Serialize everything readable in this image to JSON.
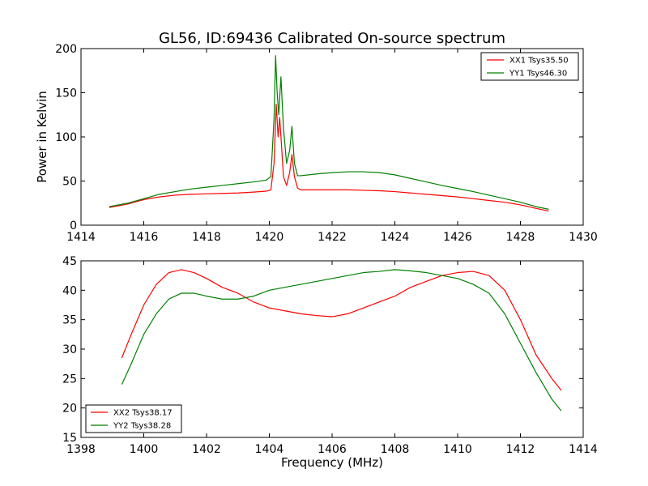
{
  "chart_data": [
    {
      "type": "line",
      "title": "GL56, ID:69436 Calibrated On-source spectrum",
      "xlabel": "",
      "ylabel": "Power in Kelvin",
      "xlim": [
        1414,
        1430
      ],
      "ylim": [
        0,
        200
      ],
      "xticks": [
        1414,
        1416,
        1418,
        1420,
        1422,
        1424,
        1426,
        1428,
        1430
      ],
      "yticks": [
        0,
        50,
        100,
        150,
        200
      ],
      "legend_position": "top-right",
      "series": [
        {
          "name": "XX1 Tsys35.50",
          "color": "#ff0000",
          "x": [
            1414.9,
            1415.5,
            1416.0,
            1416.5,
            1417.0,
            1417.5,
            1418.0,
            1418.5,
            1419.0,
            1419.5,
            1419.9,
            1420.05,
            1420.15,
            1420.22,
            1420.28,
            1420.33,
            1420.38,
            1420.45,
            1420.55,
            1420.65,
            1420.72,
            1420.8,
            1420.9,
            1421.0,
            1421.5,
            1422.0,
            1422.5,
            1423.0,
            1423.5,
            1424.0,
            1424.5,
            1425.0,
            1425.5,
            1426.0,
            1426.5,
            1427.0,
            1427.5,
            1428.0,
            1428.5,
            1428.9
          ],
          "values": [
            20,
            24,
            29,
            32,
            34,
            35,
            35.5,
            36,
            36.5,
            37.5,
            38.5,
            40,
            70,
            137,
            100,
            122,
            95,
            55,
            45,
            60,
            80,
            55,
            42,
            40,
            40,
            40,
            40,
            39.5,
            39,
            38,
            36.5,
            35,
            33.5,
            32,
            30,
            28,
            26,
            23,
            19,
            16
          ]
        },
        {
          "name": "YY1 Tsys46.30",
          "color": "#008000",
          "x": [
            1414.9,
            1415.5,
            1416.0,
            1416.5,
            1417.0,
            1417.5,
            1418.0,
            1418.5,
            1419.0,
            1419.5,
            1419.9,
            1420.05,
            1420.15,
            1420.2,
            1420.25,
            1420.3,
            1420.37,
            1420.45,
            1420.55,
            1420.65,
            1420.72,
            1420.8,
            1420.9,
            1421.0,
            1421.5,
            1422.0,
            1422.5,
            1423.0,
            1423.5,
            1424.0,
            1424.5,
            1425.0,
            1425.5,
            1426.0,
            1426.5,
            1427.0,
            1427.5,
            1428.0,
            1428.5,
            1428.9
          ],
          "values": [
            21,
            25,
            30,
            35,
            38,
            41,
            43,
            45,
            47,
            49,
            51,
            55,
            120,
            192,
            150,
            125,
            168,
            110,
            70,
            85,
            112,
            70,
            56,
            56,
            58,
            59.5,
            60.5,
            60.5,
            59.5,
            57,
            53,
            49,
            45,
            41.5,
            38,
            34,
            30,
            26,
            21,
            18
          ]
        }
      ]
    },
    {
      "type": "line",
      "title": "",
      "xlabel": "Frequency (MHz)",
      "ylabel": "",
      "xlim": [
        1398,
        1414
      ],
      "ylim": [
        15,
        45
      ],
      "xticks": [
        1398,
        1400,
        1402,
        1404,
        1406,
        1408,
        1410,
        1412,
        1414
      ],
      "yticks": [
        15,
        20,
        25,
        30,
        35,
        40,
        45
      ],
      "legend_position": "bottom-left",
      "series": [
        {
          "name": "XX2 Tsys38.17",
          "color": "#ff0000",
          "x": [
            1399.3,
            1399.6,
            1400.0,
            1400.4,
            1400.8,
            1401.2,
            1401.6,
            1402.0,
            1402.5,
            1403.0,
            1403.5,
            1404.0,
            1404.5,
            1405.0,
            1405.5,
            1406.0,
            1406.5,
            1407.0,
            1407.5,
            1408.0,
            1408.5,
            1409.0,
            1409.5,
            1410.0,
            1410.5,
            1411.0,
            1411.5,
            1412.0,
            1412.5,
            1413.0,
            1413.3
          ],
          "values": [
            28.5,
            32.5,
            37.5,
            41,
            43,
            43.5,
            43,
            42,
            40.5,
            39.5,
            38,
            37,
            36.5,
            36,
            35.7,
            35.5,
            36,
            37,
            38,
            39,
            40.5,
            41.5,
            42.5,
            43,
            43.2,
            42.5,
            40,
            35,
            29,
            25,
            23
          ]
        },
        {
          "name": "YY2 Tsys38.28",
          "color": "#008000",
          "x": [
            1399.3,
            1399.6,
            1400.0,
            1400.4,
            1400.8,
            1401.2,
            1401.6,
            1402.0,
            1402.5,
            1403.0,
            1403.5,
            1404.0,
            1404.5,
            1405.0,
            1405.5,
            1406.0,
            1406.5,
            1407.0,
            1407.5,
            1408.0,
            1408.5,
            1409.0,
            1409.5,
            1410.0,
            1410.5,
            1411.0,
            1411.5,
            1412.0,
            1412.5,
            1413.0,
            1413.3
          ],
          "values": [
            24,
            27.5,
            32.5,
            36,
            38.5,
            39.5,
            39.5,
            39,
            38.5,
            38.5,
            39,
            40,
            40.5,
            41,
            41.5,
            42,
            42.5,
            43,
            43.2,
            43.5,
            43.3,
            43,
            42.5,
            42,
            41,
            39.5,
            36,
            31,
            26,
            21.5,
            19.5
          ]
        }
      ]
    }
  ]
}
